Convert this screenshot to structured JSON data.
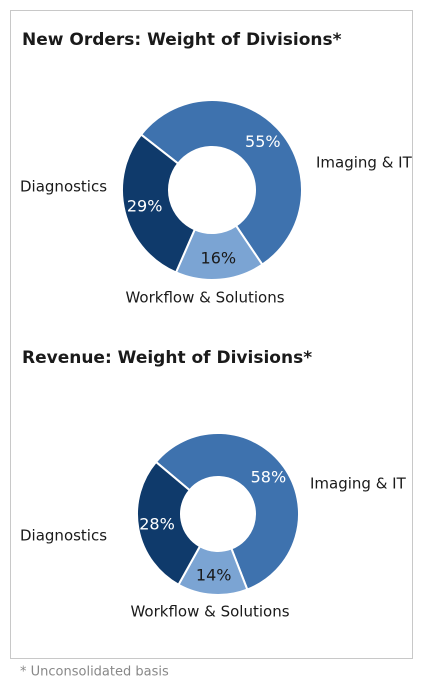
{
  "chart_data": [
    {
      "type": "donut",
      "title": "New Orders: Weight of Divisions*",
      "categories": [
        "Imaging & IT",
        "Workflow & Solutions",
        "Diagnostics"
      ],
      "values": [
        55,
        16,
        29
      ],
      "value_labels": [
        "55%",
        "16%",
        "29%"
      ],
      "colors": [
        "#3e72ae",
        "#7ba4d3",
        "#0f3a6b"
      ]
    },
    {
      "type": "donut",
      "title": "Revenue: Weight of Divisions*",
      "categories": [
        "Imaging & IT",
        "Workflow & Solutions",
        "Diagnostics"
      ],
      "values": [
        58,
        14,
        28
      ],
      "value_labels": [
        "58%",
        "14%",
        "28%"
      ],
      "colors": [
        "#3e72ae",
        "#7ba4d3",
        "#0f3a6b"
      ]
    }
  ],
  "footnote": "* Unconsolidated basis"
}
